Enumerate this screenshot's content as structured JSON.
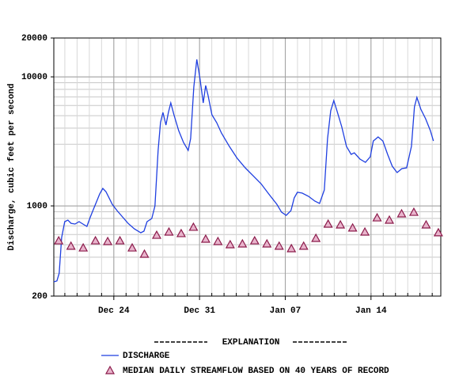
{
  "chart_data": {
    "type": "line",
    "y_label": "Discharge, cubic feet per second",
    "log_y": true,
    "grid": true,
    "xlim": [
      0.1,
      31.7
    ],
    "xticks": [
      {
        "value": 5,
        "label": "Dec 24"
      },
      {
        "value": 12,
        "label": "Dec 31"
      },
      {
        "value": 19,
        "label": "Jan 07"
      },
      {
        "value": 26,
        "label": "Jan 14"
      }
    ],
    "ylim": [
      200,
      20000
    ],
    "yticks": [
      200,
      1000,
      10000,
      20000
    ],
    "legend_title": "EXPLANATION",
    "series": [
      {
        "name": "DISCHARGE",
        "type": "line",
        "color": "#1f3fe0",
        "x": [
          0.1,
          0.35,
          0.54,
          0.74,
          0.99,
          1.25,
          1.51,
          1.83,
          2.16,
          2.48,
          2.8,
          3.06,
          3.32,
          3.58,
          3.84,
          4.1,
          4.35,
          4.61,
          4.87,
          5.26,
          5.71,
          6.16,
          6.68,
          7.2,
          7.46,
          7.71,
          8.1,
          8.36,
          8.62,
          8.81,
          9.01,
          9.26,
          9.46,
          9.65,
          9.91,
          10.3,
          10.69,
          11.07,
          11.27,
          11.53,
          11.78,
          12.04,
          12.3,
          12.5,
          12.69,
          13.01,
          13.4,
          13.79,
          14.43,
          15.08,
          15.73,
          16.37,
          17.02,
          17.66,
          18.31,
          18.7,
          19.08,
          19.47,
          19.73,
          19.99,
          20.38,
          20.9,
          21.41,
          21.8,
          22.19,
          22.45,
          22.71,
          22.96,
          23.22,
          23.61,
          24.0,
          24.38,
          24.64,
          25.1,
          25.55,
          25.94,
          26.19,
          26.58,
          26.97,
          27.36,
          27.74,
          28.13,
          28.52,
          28.91,
          29.3,
          29.55,
          29.75,
          30.07,
          30.46,
          30.85,
          31.1
        ],
        "values": [
          258,
          262,
          301,
          569,
          755,
          776,
          733,
          723,
          755,
          723,
          693,
          810,
          933,
          1074,
          1236,
          1365,
          1290,
          1154,
          1030,
          921,
          821,
          733,
          664,
          619,
          637,
          755,
          798,
          1000,
          2692,
          4416,
          5298,
          4227,
          5298,
          6281,
          5082,
          3828,
          3097,
          2692,
          3327,
          8337,
          13646,
          9594,
          6281,
          8570,
          7228,
          5082,
          4416,
          3673,
          2891,
          2334,
          1973,
          1714,
          1486,
          1236,
          1030,
          893,
          845,
          921,
          1154,
          1274,
          1256,
          1186,
          1089,
          1045,
          1327,
          3327,
          5458,
          6546,
          5458,
          4111,
          2891,
          2506,
          2576,
          2302,
          2178,
          2404,
          3184,
          3420,
          3184,
          2506,
          2028,
          1811,
          1945,
          1973,
          2891,
          5850,
          6934,
          5610,
          4732,
          3828,
          3184
        ]
      },
      {
        "name": "MEDIAN DAILY STREAMFLOW BASED ON 40 YEARS OF RECORD",
        "type": "scatter",
        "marker": "triangle",
        "color": "#8b1a4a",
        "fill": "#e8b4cc",
        "x": [
          0.5,
          1.5,
          2.5,
          3.5,
          4.5,
          5.5,
          6.5,
          7.5,
          8.5,
          9.5,
          10.5,
          11.5,
          12.5,
          13.5,
          14.5,
          15.5,
          16.5,
          17.5,
          18.5,
          19.5,
          20.5,
          21.5,
          22.5,
          23.5,
          24.5,
          25.5,
          26.5,
          27.5,
          28.5,
          29.5,
          30.5,
          31.5
        ],
        "values": [
          537,
          488,
          473,
          537,
          530,
          537,
          473,
          423,
          593,
          628,
          611,
          684,
          553,
          530,
          501,
          508,
          537,
          508,
          488,
          467,
          488,
          561,
          723,
          713,
          675,
          628,
          809,
          776,
          869,
          893,
          713,
          620
        ]
      }
    ]
  }
}
